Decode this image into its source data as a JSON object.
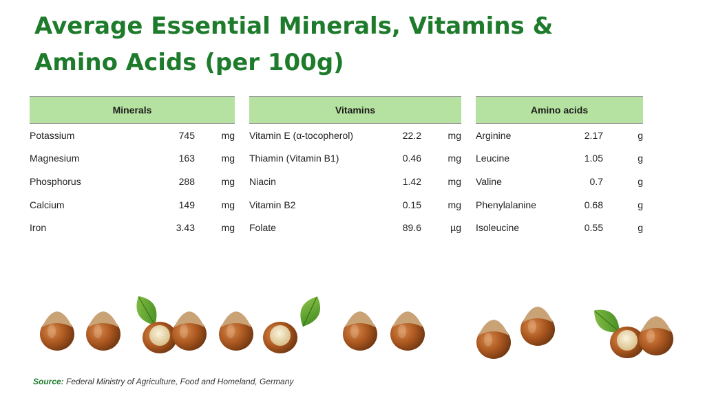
{
  "title": {
    "line1": "Average Essential Minerals, Vitamins &",
    "line2": "Amino Acids (per 100g)"
  },
  "tables": {
    "minerals": {
      "header": "Minerals",
      "rows": [
        {
          "name": "Potassium",
          "value": "745",
          "unit": "mg"
        },
        {
          "name": "Magnesium",
          "value": "163",
          "unit": "mg"
        },
        {
          "name": "Phosphorus",
          "value": "288",
          "unit": "mg"
        },
        {
          "name": "Calcium",
          "value": "149",
          "unit": "mg"
        },
        {
          "name": "Iron",
          "value": "3.43",
          "unit": "mg"
        }
      ]
    },
    "vitamins": {
      "header": "Vitamins",
      "rows": [
        {
          "name": "Vitamin E (α-tocopherol)",
          "value": "22.2",
          "unit": "mg"
        },
        {
          "name": "Thiamin (Vitamin B1)",
          "value": "0.46",
          "unit": "mg"
        },
        {
          "name": "Niacin",
          "value": "1.42",
          "unit": "mg"
        },
        {
          "name": "Vitamin B2",
          "value": "0.15",
          "unit": "mg"
        },
        {
          "name": "Folate",
          "value": "89.6",
          "unit": "µg"
        }
      ]
    },
    "amino": {
      "header": "Amino acids",
      "rows": [
        {
          "name": "Arginine",
          "value": "2.17",
          "unit": "g"
        },
        {
          "name": "Leucine",
          "value": "1.05",
          "unit": "g"
        },
        {
          "name": "Valine",
          "value": "0.7",
          "unit": "g"
        },
        {
          "name": "Phenylalanine",
          "value": "0.68",
          "unit": "g"
        },
        {
          "name": "Isoleucine",
          "value": "0.55",
          "unit": "g"
        }
      ]
    }
  },
  "source": {
    "label": "Source:",
    "text": "Federal Ministry of Agriculture, Food and Homeland, Germany"
  },
  "colors": {
    "title": "#1e7b2c",
    "header_bg": "#b6e2a1"
  },
  "decoration": {
    "image": "hazelnuts-row-icon"
  }
}
